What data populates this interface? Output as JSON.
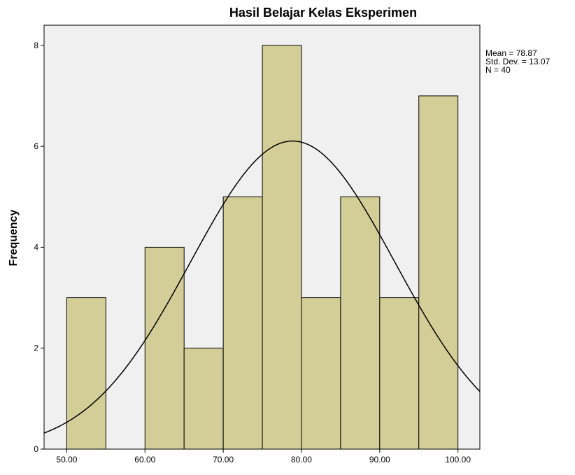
{
  "chart_data": {
    "type": "histogram",
    "title": "Hasil Belajar Kelas Eksperimen",
    "y_label": "Frequency",
    "bins": [
      50,
      55,
      60,
      65,
      70,
      75,
      80,
      85,
      90,
      95,
      100
    ],
    "values": [
      3,
      0,
      4,
      2,
      5,
      8,
      3,
      5,
      3,
      7
    ],
    "color": "#d3ce97",
    "xlim": [
      47.1,
      102.8
    ],
    "xticks": [
      {
        "value": 50,
        "label": "50.00"
      },
      {
        "value": 60,
        "label": "60.00"
      },
      {
        "value": 70,
        "label": "70.00"
      },
      {
        "value": 80,
        "label": "80.00"
      },
      {
        "value": 90,
        "label": "90.00"
      },
      {
        "value": 100,
        "label": "100.00"
      }
    ],
    "ylim": [
      0,
      8.4
    ],
    "yticks": [
      0,
      2,
      4,
      6,
      8
    ],
    "normal_curve": {
      "mean": 78.87,
      "std_dev": 13.07,
      "n": 40
    },
    "annotations": [
      "Mean = 78.87",
      "Std. Dev. = 13.07",
      "N = 40"
    ]
  }
}
